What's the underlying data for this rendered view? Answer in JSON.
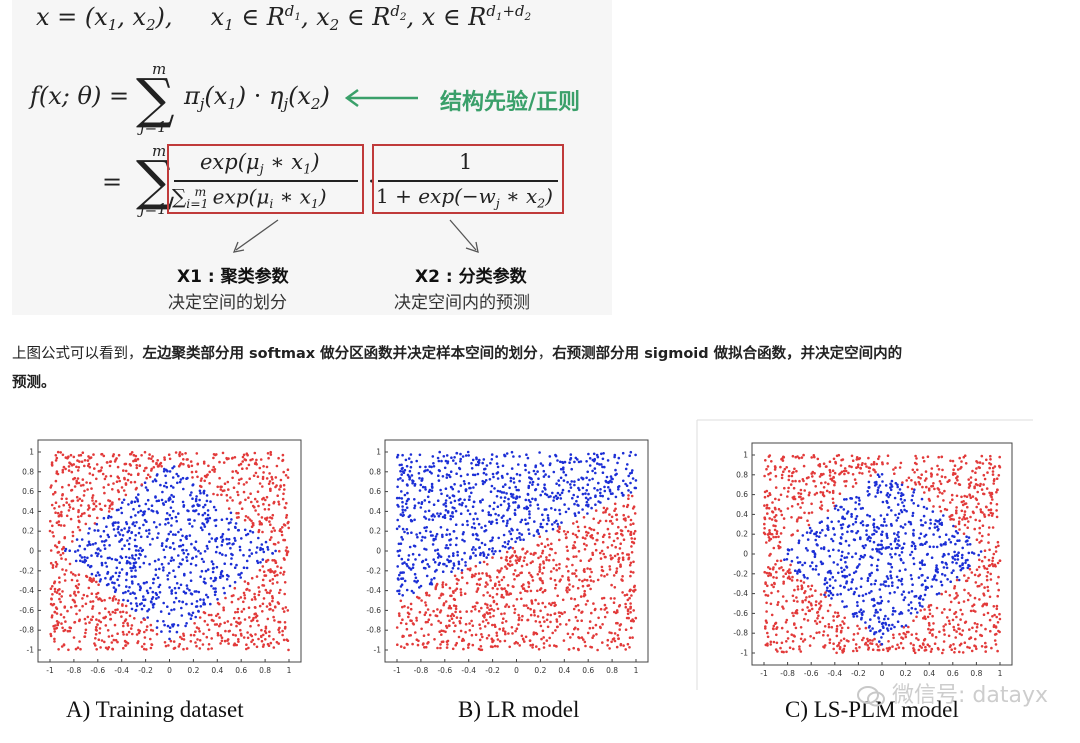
{
  "formula": {
    "line1_lhs": "x = (x",
    "line1_rest": ", x",
    "line1_domain": "x",
    "sum_upper": "m",
    "sum_lower": "j=1",
    "f_lhs": "f(x; θ) =",
    "f_rhs": "π",
    "eta": "η",
    "prior_label": "结构先验/正则",
    "box1_numerator": "exp(μ",
    "box1_denominator": "exp(μ",
    "box2_numerator": "1",
    "box2_denominator": "1 + exp(−w",
    "x1_title": "X1 : 聚类参数",
    "x1_desc": "决定空间的划分",
    "x2_title": "X2 : 分类参数",
    "x2_desc": "决定空间内的预测"
  },
  "caption": {
    "part1": "上图公式可以看到，",
    "part2": "左边聚类部分用 softmax 做分区函数并决定样本空间的划分",
    "part3": "，",
    "part4": "右预测部分用 sigmoid 做拟合函数，并决定空间内的",
    "part5": "预测。"
  },
  "watermark": "微信号: datayx",
  "colors": {
    "red_points": "#e23a3a",
    "blue_points": "#1c2fd6",
    "box_border": "#c03a3a",
    "prior_green": "#3aa06a"
  },
  "chart_data": [
    {
      "type": "scatter",
      "title": "A) Training dataset",
      "xlim": [
        -1,
        1
      ],
      "ylim": [
        -1,
        1
      ],
      "xticks": [
        "-1",
        "-0.8",
        "-0.6",
        "-0.4",
        "-0.2",
        "0",
        "0.2",
        "0.4",
        "0.6",
        "0.8",
        "1"
      ],
      "yticks": [
        "1",
        "0.8",
        "0.6",
        "0.4",
        "0.2",
        "0",
        "-0.2",
        "-0.4",
        "-0.6",
        "-0.8",
        "-1"
      ],
      "series": [
        {
          "color": "#1c2fd6",
          "rule": "|x| + |y| <= 0.9 (diamond)"
        },
        {
          "color": "#e23a3a",
          "rule": "outside diamond"
        }
      ],
      "boundary": "diamond",
      "grid": false
    },
    {
      "type": "scatter",
      "title": "B) LR model",
      "xlim": [
        -1,
        1
      ],
      "ylim": [
        -1,
        1
      ],
      "xticks": [
        "-1",
        "-0.8",
        "-0.6",
        "-0.4",
        "-0.2",
        "0",
        "0.2",
        "0.4",
        "0.6",
        "0.8",
        "1"
      ],
      "yticks": [
        "1",
        "0.8",
        "0.6",
        "0.4",
        "0.2",
        "0",
        "-0.2",
        "-0.4",
        "-0.6",
        "-0.8",
        "-1"
      ],
      "series": [
        {
          "color": "#1c2fd6",
          "rule": "above line y = 0.55x + 0.05"
        },
        {
          "color": "#e23a3a",
          "rule": "below line"
        }
      ],
      "boundary": "linear",
      "grid": false
    },
    {
      "type": "scatter",
      "title": "C) LS-PLM model",
      "xlim": [
        -1,
        1
      ],
      "ylim": [
        -1,
        1
      ],
      "xticks": [
        "-1",
        "-0.8",
        "-0.6",
        "-0.4",
        "-0.2",
        "0",
        "0.2",
        "0.4",
        "0.6",
        "0.8",
        "1"
      ],
      "yticks": [
        "1",
        "0.8",
        "0.6",
        "0.4",
        "0.2",
        "0",
        "-0.2",
        "-0.4",
        "-0.6",
        "-0.8",
        "-1"
      ],
      "series": [
        {
          "color": "#1c2fd6",
          "rule": "approximately |x| + |y| <= 0.9 (diamond)"
        },
        {
          "color": "#e23a3a",
          "rule": "outside"
        }
      ],
      "boundary": "diamond",
      "grid": false
    }
  ]
}
